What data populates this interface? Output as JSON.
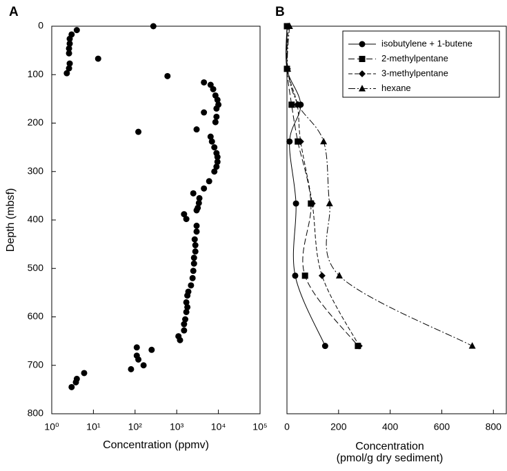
{
  "chart_data": [
    {
      "type": "scatter",
      "panel_label": "A",
      "xlabel": "Concentration (ppmv)",
      "ylabel": "Depth (mbsf)",
      "xscale": "log",
      "xlim": [
        1,
        100000
      ],
      "xticks": [
        {
          "value": 1,
          "label": "10⁰"
        },
        {
          "value": 10,
          "label": "10¹"
        },
        {
          "value": 100,
          "label": "10²"
        },
        {
          "value": 1000,
          "label": "10³"
        },
        {
          "value": 10000,
          "label": "10⁴"
        },
        {
          "value": 100000,
          "label": "10⁵"
        }
      ],
      "ylim": [
        0,
        800
      ],
      "yticks": [
        0,
        100,
        200,
        300,
        400,
        500,
        600,
        700,
        800
      ],
      "yinverted": true,
      "series": [
        {
          "color": "#000000",
          "marker": "circle",
          "x": [
            275,
            4,
            3,
            2.7,
            2.7,
            2.6,
            2.6,
            13,
            2.7,
            2.6,
            2.3,
            600,
            4500,
            6500,
            7500,
            8500,
            9500,
            10000,
            9000,
            4500,
            9000,
            8500,
            3000,
            120,
            6500,
            7000,
            8000,
            9000,
            9500,
            9500,
            9000,
            8000,
            6000,
            4500,
            2500,
            3500,
            3400,
            3200,
            3000,
            1500,
            1700,
            3000,
            3000,
            2700,
            2800,
            2800,
            2600,
            2600,
            2500,
            2400,
            2200,
            1900,
            1800,
            1700,
            1800,
            1700,
            1600,
            1500,
            1500,
            1100,
            1200,
            110,
            250,
            110,
            120,
            160,
            80,
            6,
            4,
            3.8,
            3
          ],
          "y": [
            0,
            8,
            17,
            26,
            36,
            46,
            56,
            67,
            77,
            87,
            97,
            103,
            116,
            121,
            130,
            143,
            152,
            162,
            170,
            178,
            187,
            198,
            213,
            218,
            228,
            238,
            250,
            262,
            270,
            280,
            290,
            300,
            320,
            335,
            345,
            355,
            365,
            375,
            380,
            388,
            398,
            412,
            424,
            440,
            452,
            465,
            478,
            490,
            505,
            520,
            535,
            548,
            556,
            570,
            580,
            590,
            605,
            615,
            628,
            640,
            648,
            663,
            668,
            680,
            688,
            700,
            708,
            716,
            728,
            735,
            745
          ]
        }
      ]
    },
    {
      "type": "line",
      "panel_label": "B",
      "xlabel": [
        "Concentration",
        "(pmol/g dry sediment)"
      ],
      "xlim": [
        0,
        850
      ],
      "xticks": [
        0,
        200,
        400,
        600,
        800
      ],
      "ylim": [
        0,
        800
      ],
      "yinverted": true,
      "legend": "upper right",
      "series": [
        {
          "name": "isobutylene + 1-butene",
          "color": "#000000",
          "marker": "circle",
          "linestyle": "solid",
          "x": [
            0,
            0,
            53,
            10,
            35,
            32,
            148
          ],
          "y": [
            0,
            88,
            162,
            238,
            366,
            515,
            660
          ]
        },
        {
          "name": "2-methylpentane",
          "color": "#000000",
          "marker": "square",
          "linestyle": "dashed",
          "x": [
            0,
            0,
            18,
            42,
            93,
            70,
            275
          ],
          "y": [
            0,
            88,
            162,
            238,
            366,
            515,
            660
          ]
        },
        {
          "name": "3-methylpentane",
          "color": "#000000",
          "marker": "diamond",
          "linestyle": "dashed-short",
          "x": [
            5,
            2,
            40,
            53,
            98,
            136,
            280
          ],
          "y": [
            0,
            88,
            162,
            238,
            366,
            515,
            660
          ]
        },
        {
          "name": "hexane",
          "color": "#000000",
          "marker": "triangle",
          "linestyle": "dashdot",
          "x": [
            10,
            3,
            43,
            142,
            165,
            203,
            718
          ],
          "y": [
            0,
            88,
            162,
            238,
            366,
            515,
            660
          ]
        }
      ]
    }
  ]
}
